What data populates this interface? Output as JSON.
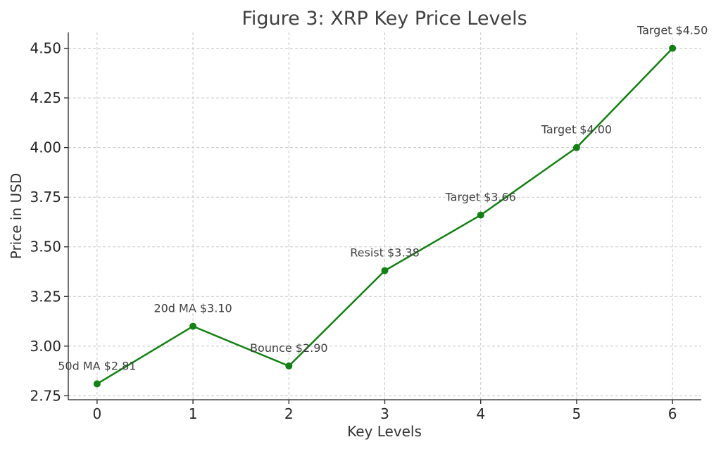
{
  "chart_data": {
    "type": "line",
    "title": "Figure 3: XRP Key Price Levels",
    "xlabel": "Key Levels",
    "ylabel": "Price in USD",
    "x": [
      0,
      1,
      2,
      3,
      4,
      5,
      6
    ],
    "xlim": [
      -0.3,
      6.3
    ],
    "ylim": [
      2.73,
      4.58
    ],
    "x_ticks": [
      "0",
      "1",
      "2",
      "3",
      "4",
      "5",
      "6"
    ],
    "y_ticks": [
      "2.75",
      "3.00",
      "3.25",
      "3.50",
      "3.75",
      "4.00",
      "4.25",
      "4.50"
    ],
    "y_tick_values": [
      2.75,
      3.0,
      3.25,
      3.5,
      3.75,
      4.0,
      4.25,
      4.5
    ],
    "grid": true,
    "series": [
      {
        "values": [
          2.81,
          3.1,
          2.9,
          3.38,
          3.66,
          4.0,
          4.5
        ],
        "color": "#128012",
        "point_labels": [
          "50d MA $2.81",
          "20d MA $3.10",
          "Bounce $2.90",
          "Resist $3.38",
          "Target $3.66",
          "Target $4.00",
          "Target $4.50"
        ]
      }
    ]
  }
}
